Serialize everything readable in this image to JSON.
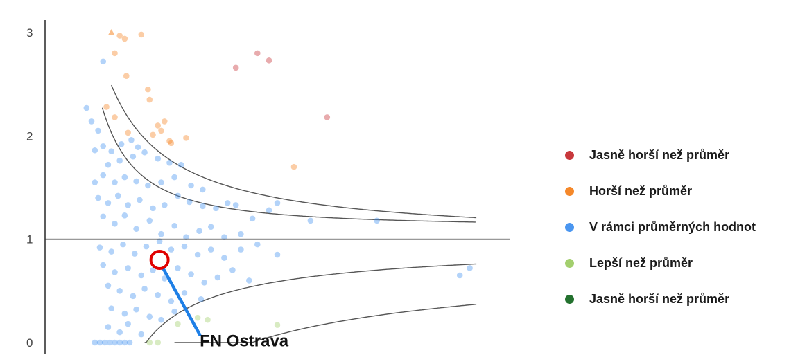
{
  "chart_data": {
    "type": "scatter",
    "title": "",
    "xlabel": "",
    "ylabel": "",
    "ylim": [
      0,
      3
    ],
    "y_ticks": [
      "0",
      "1",
      "2",
      "3"
    ],
    "reference_line": 1,
    "grid": false,
    "legend_position": "right",
    "series": [
      {
        "name": "Jasně horší než průměr",
        "color": "#c8383c",
        "points": [
          [
            12.8,
            2.8
          ],
          [
            13.5,
            2.73
          ],
          [
            11.5,
            2.66
          ],
          [
            17.0,
            2.18
          ]
        ]
      },
      {
        "name": "Horší než průměr",
        "color": "#f5882a",
        "points": [
          [
            4.0,
            3.0
          ],
          [
            4.5,
            2.97
          ],
          [
            4.8,
            2.94
          ],
          [
            5.8,
            2.98
          ],
          [
            4.2,
            2.8
          ],
          [
            4.9,
            2.58
          ],
          [
            3.7,
            2.28
          ],
          [
            4.2,
            2.18
          ],
          [
            6.2,
            2.45
          ],
          [
            6.3,
            2.35
          ],
          [
            6.8,
            2.1
          ],
          [
            7.0,
            2.05
          ],
          [
            7.2,
            2.14
          ],
          [
            6.5,
            2.01
          ],
          [
            7.5,
            1.95
          ],
          [
            5.0,
            2.03
          ],
          [
            8.5,
            1.98
          ],
          [
            7.6,
            1.93
          ],
          [
            15.0,
            1.7
          ]
        ]
      },
      {
        "name": "V rámci průměrných hodnot",
        "color": "#4a96f0",
        "points": [
          [
            2.5,
            2.27
          ],
          [
            3.5,
            2.72
          ],
          [
            2.8,
            2.14
          ],
          [
            3.2,
            2.05
          ],
          [
            3.5,
            1.9
          ],
          [
            3.0,
            1.86
          ],
          [
            4.0,
            1.85
          ],
          [
            4.6,
            1.92
          ],
          [
            5.2,
            1.96
          ],
          [
            5.6,
            1.89
          ],
          [
            3.8,
            1.72
          ],
          [
            4.5,
            1.76
          ],
          [
            5.3,
            1.8
          ],
          [
            6.0,
            1.84
          ],
          [
            6.8,
            1.78
          ],
          [
            7.5,
            1.74
          ],
          [
            8.2,
            1.72
          ],
          [
            3.0,
            1.55
          ],
          [
            3.5,
            1.62
          ],
          [
            4.2,
            1.55
          ],
          [
            4.8,
            1.6
          ],
          [
            5.5,
            1.56
          ],
          [
            6.2,
            1.52
          ],
          [
            7.0,
            1.55
          ],
          [
            7.8,
            1.6
          ],
          [
            8.8,
            1.52
          ],
          [
            9.5,
            1.48
          ],
          [
            3.2,
            1.4
          ],
          [
            3.8,
            1.35
          ],
          [
            4.4,
            1.42
          ],
          [
            5.0,
            1.33
          ],
          [
            5.7,
            1.38
          ],
          [
            6.5,
            1.3
          ],
          [
            7.2,
            1.33
          ],
          [
            8.0,
            1.42
          ],
          [
            8.7,
            1.36
          ],
          [
            9.5,
            1.32
          ],
          [
            10.3,
            1.3
          ],
          [
            11.0,
            1.35
          ],
          [
            11.5,
            1.33
          ],
          [
            13.5,
            1.28
          ],
          [
            14.0,
            1.35
          ],
          [
            12.5,
            1.2
          ],
          [
            16.0,
            1.18
          ],
          [
            20.0,
            1.18
          ],
          [
            3.5,
            1.22
          ],
          [
            4.2,
            1.15
          ],
          [
            4.8,
            1.23
          ],
          [
            5.5,
            1.1
          ],
          [
            6.3,
            1.18
          ],
          [
            7.0,
            1.05
          ],
          [
            7.8,
            1.13
          ],
          [
            8.5,
            1.02
          ],
          [
            9.3,
            1.08
          ],
          [
            10.0,
            1.12
          ],
          [
            10.8,
            1.02
          ],
          [
            11.8,
            1.05
          ],
          [
            3.3,
            0.92
          ],
          [
            4.0,
            0.88
          ],
          [
            4.7,
            0.95
          ],
          [
            5.4,
            0.86
          ],
          [
            6.1,
            0.93
          ],
          [
            6.9,
            0.98
          ],
          [
            7.6,
            0.9
          ],
          [
            8.4,
            0.93
          ],
          [
            9.2,
            0.85
          ],
          [
            10.0,
            0.9
          ],
          [
            10.8,
            0.82
          ],
          [
            11.8,
            0.9
          ],
          [
            12.8,
            0.95
          ],
          [
            14.0,
            0.85
          ],
          [
            3.5,
            0.75
          ],
          [
            4.2,
            0.68
          ],
          [
            5.0,
            0.72
          ],
          [
            5.8,
            0.65
          ],
          [
            6.5,
            0.7
          ],
          [
            7.2,
            0.62
          ],
          [
            8.0,
            0.72
          ],
          [
            8.8,
            0.66
          ],
          [
            9.6,
            0.58
          ],
          [
            10.4,
            0.63
          ],
          [
            11.3,
            0.7
          ],
          [
            12.3,
            0.6
          ],
          [
            3.8,
            0.55
          ],
          [
            4.5,
            0.5
          ],
          [
            5.3,
            0.45
          ],
          [
            6.0,
            0.52
          ],
          [
            6.8,
            0.46
          ],
          [
            7.6,
            0.4
          ],
          [
            8.4,
            0.48
          ],
          [
            9.4,
            0.42
          ],
          [
            4.0,
            0.33
          ],
          [
            4.8,
            0.28
          ],
          [
            5.5,
            0.32
          ],
          [
            6.3,
            0.25
          ],
          [
            7.0,
            0.22
          ],
          [
            7.8,
            0.3
          ],
          [
            3.8,
            0.15
          ],
          [
            4.5,
            0.1
          ],
          [
            5.0,
            0.18
          ],
          [
            5.8,
            0.08
          ],
          [
            3.0,
            0.0
          ],
          [
            3.3,
            0.0
          ],
          [
            3.6,
            0.0
          ],
          [
            3.9,
            0.0
          ],
          [
            4.2,
            0.0
          ],
          [
            4.5,
            0.0
          ],
          [
            4.8,
            0.0
          ],
          [
            5.1,
            0.0
          ],
          [
            25.0,
            0.65
          ],
          [
            25.6,
            0.72
          ]
        ]
      },
      {
        "name": "Lepší než průměr",
        "color": "#a3cf6e",
        "points": [
          [
            8.0,
            0.18
          ],
          [
            9.2,
            0.24
          ],
          [
            9.8,
            0.22
          ],
          [
            14.0,
            0.17
          ],
          [
            6.3,
            0.0
          ],
          [
            6.8,
            0.0
          ]
        ]
      },
      {
        "name": "Jasně horší než průměr",
        "color": "#23712e",
        "points": []
      }
    ],
    "annotations": [
      {
        "text": "FN Ostrava",
        "x": 6.9,
        "y": 0.8
      }
    ]
  }
}
